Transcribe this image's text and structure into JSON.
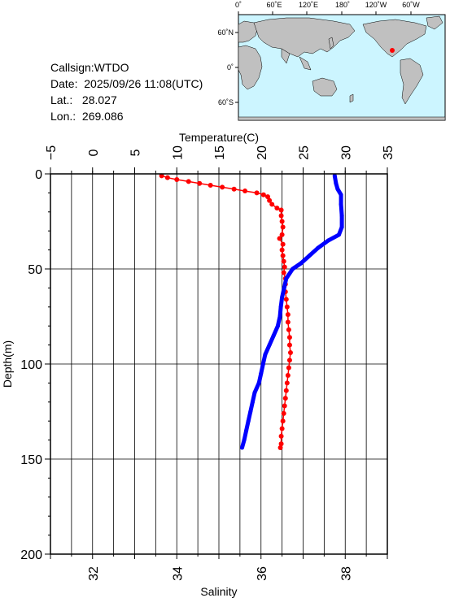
{
  "info": {
    "callsign": "Callsign:WTDO",
    "date": "Date:  2025/09/26 11:08(UTC)",
    "lat": "Lat.:   28.027",
    "lon": "Lon.:  269.086"
  },
  "map": {
    "top_labels": [
      "0˚",
      "60˚E",
      "120˚E",
      "180˚",
      "120˚W",
      "60˚W"
    ],
    "left_labels": [
      "60˚N",
      "0˚",
      "60˚S"
    ],
    "ocean_color": "#ccf5ff",
    "land_color": "#c0c0c0",
    "marker_color": "#ff0000"
  },
  "chart_data": {
    "type": "line",
    "title": "",
    "xlabel_top": "Temperature(C)",
    "xlabel_bottom": "Salinity",
    "ylabel": "Depth(m)",
    "temperature_range": [
      -5,
      35
    ],
    "temperature_ticks": [
      "−5",
      "0",
      "5",
      "10",
      "15",
      "20",
      "25",
      "30",
      "35"
    ],
    "salinity_range": [
      31,
      39
    ],
    "salinity_ticks": [
      "32",
      "34",
      "36",
      "38"
    ],
    "depth_range": [
      0,
      200
    ],
    "depth_ticks": [
      "0",
      "50",
      "100",
      "150",
      "200"
    ],
    "grid": true,
    "series": [
      {
        "axis": "temperature",
        "color": "#ff0000",
        "points": [
          [
            8.2,
            1
          ],
          [
            8.9,
            2
          ],
          [
            10.0,
            3
          ],
          [
            11.4,
            4
          ],
          [
            12.7,
            5
          ],
          [
            14.0,
            6
          ],
          [
            15.4,
            7
          ],
          [
            16.8,
            8
          ],
          [
            18.1,
            9
          ],
          [
            19.5,
            10
          ],
          [
            20.3,
            11
          ],
          [
            20.8,
            12
          ],
          [
            21.0,
            14
          ],
          [
            21.3,
            16
          ],
          [
            21.9,
            18
          ],
          [
            22.4,
            19
          ],
          [
            22.4,
            22
          ],
          [
            22.5,
            25
          ],
          [
            22.6,
            28
          ],
          [
            22.5,
            32
          ],
          [
            22.2,
            34
          ],
          [
            22.6,
            37
          ],
          [
            22.5,
            40
          ],
          [
            22.6,
            43
          ],
          [
            22.7,
            46
          ],
          [
            22.8,
            49
          ],
          [
            22.7,
            52
          ],
          [
            22.9,
            55
          ],
          [
            22.9,
            58
          ],
          [
            22.9,
            62
          ],
          [
            23.0,
            66
          ],
          [
            23.1,
            70
          ],
          [
            23.2,
            74
          ],
          [
            23.2,
            78
          ],
          [
            23.3,
            82
          ],
          [
            23.4,
            86
          ],
          [
            23.4,
            90
          ],
          [
            23.5,
            94
          ],
          [
            23.4,
            98
          ],
          [
            23.3,
            102
          ],
          [
            23.2,
            106
          ],
          [
            23.1,
            110
          ],
          [
            23.0,
            114
          ],
          [
            22.9,
            118
          ],
          [
            22.8,
            122
          ],
          [
            22.7,
            126
          ],
          [
            22.6,
            130
          ],
          [
            22.5,
            134
          ],
          [
            22.4,
            138
          ],
          [
            22.4,
            142
          ],
          [
            22.3,
            144
          ]
        ]
      },
      {
        "axis": "salinity",
        "color": "#0000ff",
        "points": [
          [
            37.75,
            1
          ],
          [
            37.78,
            5
          ],
          [
            37.82,
            8
          ],
          [
            37.9,
            11
          ],
          [
            37.9,
            16
          ],
          [
            37.92,
            22
          ],
          [
            37.92,
            28
          ],
          [
            37.85,
            32
          ],
          [
            37.6,
            35
          ],
          [
            37.35,
            39
          ],
          [
            37.15,
            43
          ],
          [
            36.95,
            47
          ],
          [
            36.75,
            50
          ],
          [
            36.6,
            55
          ],
          [
            36.55,
            60
          ],
          [
            36.5,
            65
          ],
          [
            36.47,
            70
          ],
          [
            36.45,
            75
          ],
          [
            36.4,
            80
          ],
          [
            36.3,
            85
          ],
          [
            36.2,
            90
          ],
          [
            36.1,
            95
          ],
          [
            36.05,
            100
          ],
          [
            36.0,
            105
          ],
          [
            35.95,
            110
          ],
          [
            35.85,
            115
          ],
          [
            35.8,
            120
          ],
          [
            35.75,
            125
          ],
          [
            35.7,
            130
          ],
          [
            35.65,
            135
          ],
          [
            35.6,
            140
          ],
          [
            35.55,
            144
          ]
        ]
      }
    ]
  }
}
